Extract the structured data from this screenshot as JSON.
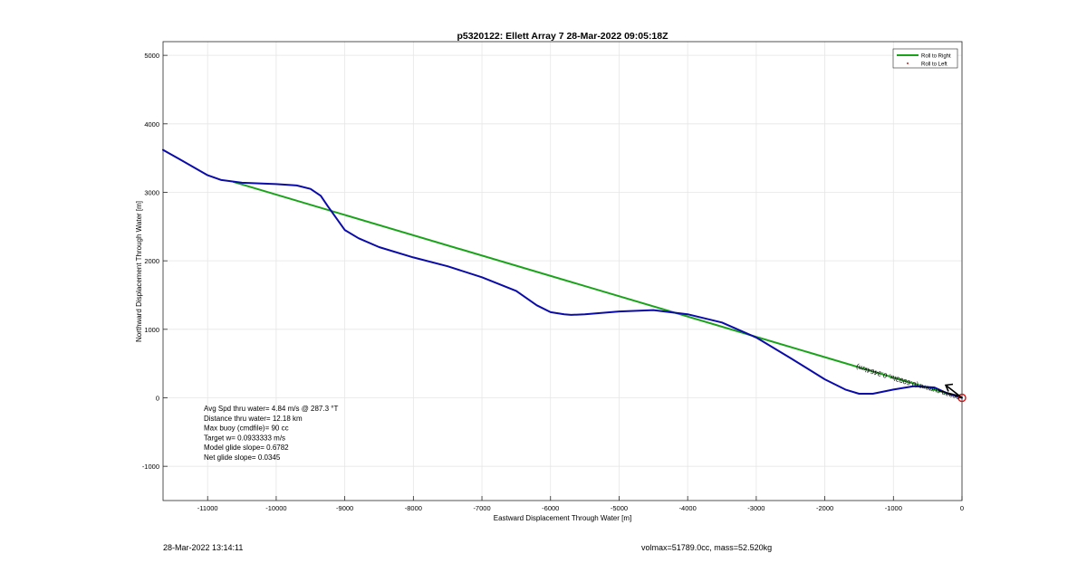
{
  "chart_data": {
    "type": "line",
    "title": "p5320122: Ellett Array 7 28-Mar-2022 09:05:18Z",
    "xlabel": "Eastward Displacement Through Water [m]",
    "ylabel": "Northward Displacement Through Water [m]",
    "xlim": [
      -11650,
      0
    ],
    "ylim": [
      -1500,
      5200
    ],
    "xticks": [
      -11000,
      -10000,
      -9000,
      -8000,
      -7000,
      -6000,
      -5000,
      -4000,
      -3000,
      -2000,
      -1000,
      0
    ],
    "yticks": [
      -1000,
      0,
      1000,
      2000,
      3000,
      4000,
      5000
    ],
    "grid": true,
    "legend_position": "top-right",
    "series": [
      {
        "name": "Roll to Right",
        "color": "#1aa31a",
        "x": [
          0,
          -10620
        ],
        "y": [
          0,
          3150
        ]
      },
      {
        "name": "Roll to Left",
        "color": "#cc2222",
        "x": [],
        "y": []
      },
      {
        "name": "",
        "color": "#0b0baa",
        "x": [
          -11650,
          -11400,
          -11000,
          -10800,
          -10500,
          -10000,
          -9700,
          -9500,
          -9350,
          -9250,
          -9000,
          -8800,
          -8500,
          -8000,
          -7500,
          -7000,
          -6500,
          -6200,
          -6000,
          -5800,
          -5700,
          -5500,
          -5000,
          -4500,
          -4000,
          -3500,
          -3000,
          -2500,
          -2000,
          -1700,
          -1500,
          -1300,
          -1000,
          -700,
          -400,
          -200,
          0
        ],
        "y": [
          3620,
          3480,
          3250,
          3180,
          3140,
          3120,
          3100,
          3050,
          2950,
          2800,
          2450,
          2330,
          2200,
          2050,
          1920,
          1760,
          1560,
          1350,
          1250,
          1220,
          1210,
          1220,
          1260,
          1280,
          1220,
          1100,
          880,
          580,
          270,
          120,
          60,
          60,
          120,
          170,
          150,
          60,
          0
        ]
      }
    ],
    "annotations": [
      {
        "text": "Avg Spd thru water=  4.84 m/s @ 287.3 °T"
      },
      {
        "text": "Distance thru water= 12.18 km"
      },
      {
        "text": "Max buoy (cmdfile)= 90 cc"
      },
      {
        "text": "Target w= 0.0933333 m/s"
      },
      {
        "text": "Model glide slope= 0.6782"
      },
      {
        "text": "Net glide slope= 0.0345"
      }
    ],
    "current_arrow": {
      "label": "ocean current (0.6993hr, 0.3464km)"
    }
  },
  "footer": {
    "date": "28-Mar-2022 13:14:11",
    "params": "volmax=51789.0cc, mass=52.520kg"
  }
}
